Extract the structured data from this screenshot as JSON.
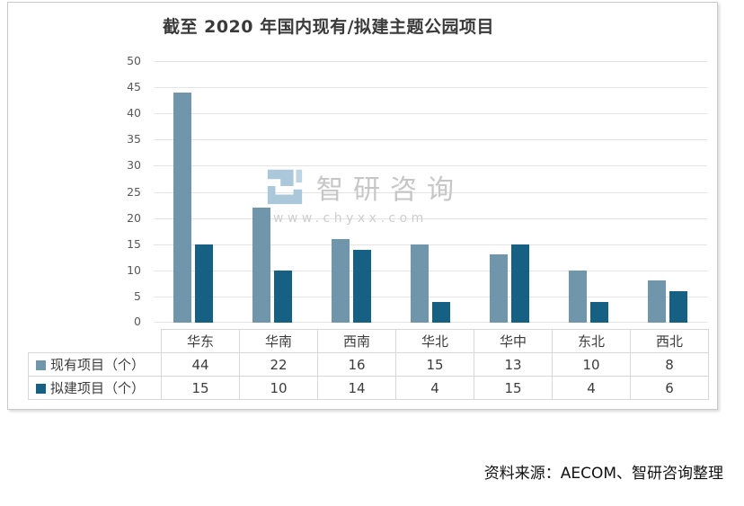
{
  "title": "截至 2020 年国内现有/拟建主题公园项目",
  "watermark": {
    "brand": "智研咨询",
    "url": "www.chyxx.com"
  },
  "source_note": "资料来源：AECOM、智研咨询整理",
  "colors": {
    "existing_series": "#6f96aa",
    "planned_series": "#156083",
    "gridline": "#e4e4e4",
    "table_border": "#d8d8d8",
    "watermark_logo": "#aac8da"
  },
  "chart_data": {
    "type": "bar",
    "title": "截至 2020 年国内现有/拟建主题公园项目",
    "categories": [
      "华东",
      "华南",
      "西南",
      "华北",
      "华中",
      "东北",
      "西北"
    ],
    "series": [
      {
        "name": "现有项目（个）",
        "values": [
          44,
          22,
          16,
          15,
          13,
          10,
          8
        ],
        "color": "#6f96aa"
      },
      {
        "name": "拟建项目（个）",
        "values": [
          15,
          10,
          14,
          4,
          15,
          4,
          6
        ],
        "color": "#156083"
      }
    ],
    "xlabel": "",
    "ylabel": "",
    "ylim": [
      0,
      50
    ],
    "ytick_step": 5,
    "grid": true,
    "legend_position": "table-below"
  }
}
